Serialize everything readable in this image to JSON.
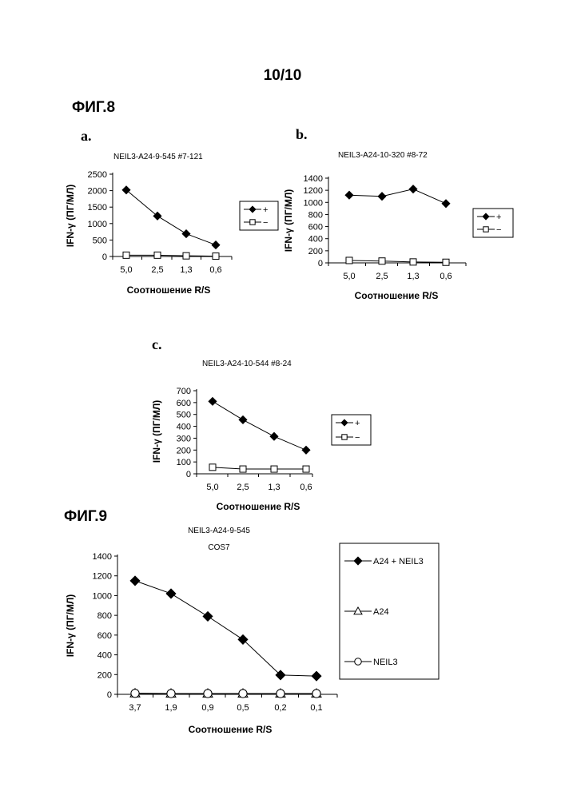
{
  "page": {
    "page_number": "10/10",
    "fig8_heading": "ФИГ.8",
    "fig9_heading": "ФИГ.9"
  },
  "chart_data": [
    {
      "id": "fig8a",
      "type": "line",
      "panel": "a.",
      "title": "NEIL3-A24-9-545 #7-121",
      "xlabel": "Соотношение R/S",
      "ylabel": "IFN-γ (ПГ/МЛ)",
      "categories": [
        "5,0",
        "2,5",
        "1,3",
        "0,6"
      ],
      "ylim": [
        0,
        2500
      ],
      "yticks": [
        0,
        500,
        1000,
        1500,
        2000,
        2500
      ],
      "grid": false,
      "legend_position": "right",
      "series": [
        {
          "name": "+",
          "marker": "diamond-filled",
          "values": [
            2020,
            1230,
            690,
            350
          ]
        },
        {
          "name": "−",
          "marker": "square-open",
          "values": [
            40,
            40,
            20,
            10
          ]
        }
      ]
    },
    {
      "id": "fig8b",
      "type": "line",
      "panel": "b.",
      "title": "NEIL3-A24-10-320 #8-72",
      "xlabel": "Соотношение R/S",
      "ylabel": "IFN-γ (ПГ/МЛ)",
      "categories": [
        "5,0",
        "2,5",
        "1,3",
        "0,6"
      ],
      "ylim": [
        0,
        1400
      ],
      "yticks": [
        0,
        200,
        400,
        600,
        800,
        1000,
        1200,
        1400
      ],
      "grid": false,
      "legend_position": "right",
      "series": [
        {
          "name": "+",
          "marker": "diamond-filled",
          "values": [
            1120,
            1100,
            1220,
            980
          ]
        },
        {
          "name": "−",
          "marker": "square-open",
          "values": [
            40,
            30,
            15,
            10
          ]
        }
      ]
    },
    {
      "id": "fig8c",
      "type": "line",
      "panel": "c.",
      "title": "NEIL3-A24-10-544 #8-24",
      "xlabel": "Соотношение R/S",
      "ylabel": "IFN-γ (ПГ/МЛ)",
      "categories": [
        "5,0",
        "2,5",
        "1,3",
        "0,6"
      ],
      "ylim": [
        0,
        700
      ],
      "yticks": [
        0,
        100,
        200,
        300,
        400,
        500,
        600,
        700
      ],
      "grid": false,
      "legend_position": "right",
      "series": [
        {
          "name": "+",
          "marker": "diamond-filled",
          "values": [
            610,
            455,
            315,
            200
          ]
        },
        {
          "name": "−",
          "marker": "square-open",
          "values": [
            55,
            40,
            40,
            40
          ]
        }
      ]
    },
    {
      "id": "fig9",
      "type": "line",
      "panel": "",
      "title": "NEIL3-A24-9-545",
      "subtitle": "COS7",
      "xlabel": "Соотношение R/S",
      "ylabel": "IFN-γ (ПГ/МЛ)",
      "categories": [
        "3,7",
        "1,9",
        "0,9",
        "0,5",
        "0,2",
        "0,1"
      ],
      "ylim": [
        0,
        1400
      ],
      "yticks": [
        0,
        200,
        400,
        600,
        800,
        1000,
        1200,
        1400
      ],
      "grid": false,
      "legend_position": "right",
      "series": [
        {
          "name": "A24 + NEIL3",
          "marker": "diamond-filled",
          "values": [
            1150,
            1020,
            790,
            555,
            195,
            185
          ]
        },
        {
          "name": "A24",
          "marker": "triangle-open",
          "values": [
            10,
            8,
            8,
            8,
            8,
            8
          ]
        },
        {
          "name": "NEIL3",
          "marker": "circle-open",
          "values": [
            10,
            8,
            8,
            8,
            8,
            8
          ]
        }
      ]
    }
  ]
}
